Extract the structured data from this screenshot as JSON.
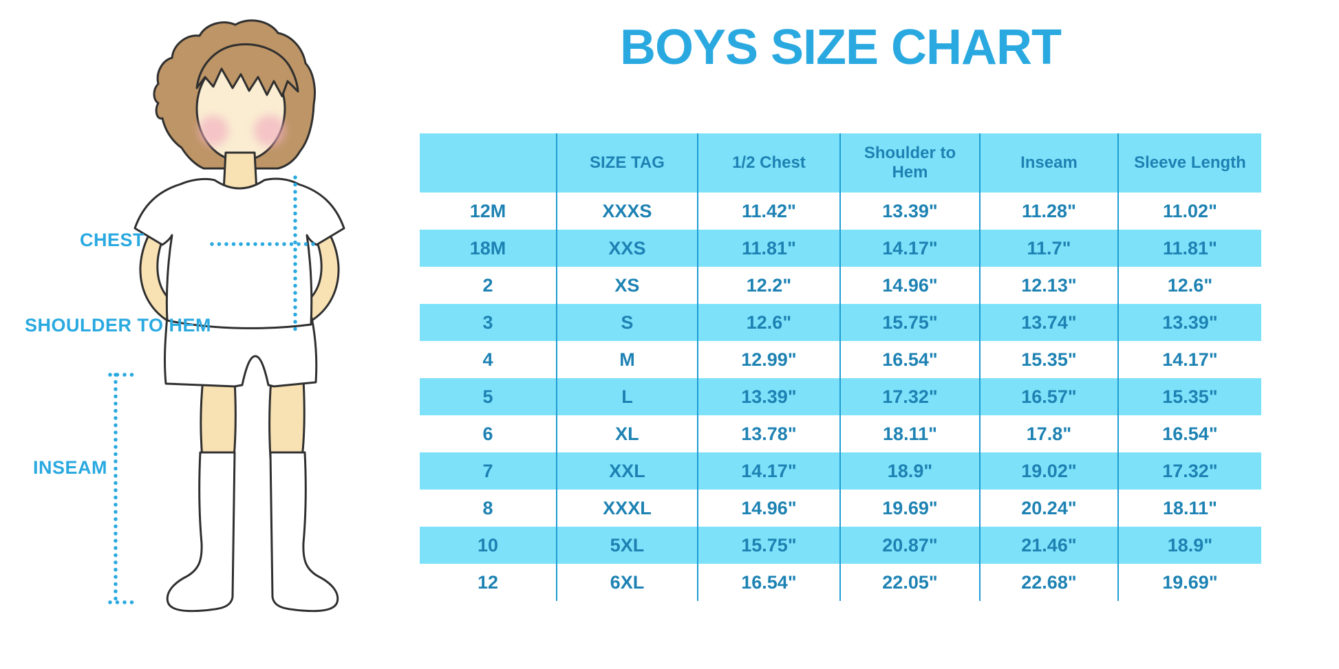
{
  "title_text": "BOYS SIZE CHART",
  "colors": {
    "accent": "#29A9E0",
    "band": "#7DE2F9",
    "line": "#1E9CD3",
    "cell_text": "#1D82B3",
    "skin": "#F8E2B3",
    "skin_light": "#FAEDD2",
    "hair": "#BD9566",
    "blush": "#F2AFC0"
  },
  "diagram": {
    "labels": [
      {
        "id": "chest",
        "text": "CHEST"
      },
      {
        "id": "shoulder-to-hem",
        "text": "SHOULDER TO HEM"
      },
      {
        "id": "inseam",
        "text": "INSEAM"
      }
    ]
  },
  "chart_data": {
    "type": "table",
    "title": "BOYS SIZE CHART",
    "columns": [
      "",
      "SIZE TAG",
      "1/2 Chest",
      "Shoulder to Hem",
      "Inseam",
      "Sleeve Length"
    ],
    "rows": [
      [
        "12M",
        "XXXS",
        "11.42\"",
        "13.39\"",
        "11.28\"",
        "11.02\""
      ],
      [
        "18M",
        "XXS",
        "11.81\"",
        "14.17\"",
        "11.7\"",
        "11.81\""
      ],
      [
        "2",
        "XS",
        "12.2\"",
        "14.96\"",
        "12.13\"",
        "12.6\""
      ],
      [
        "3",
        "S",
        "12.6\"",
        "15.75\"",
        "13.74\"",
        "13.39\""
      ],
      [
        "4",
        "M",
        "12.99\"",
        "16.54\"",
        "15.35\"",
        "14.17\""
      ],
      [
        "5",
        "L",
        "13.39\"",
        "17.32\"",
        "16.57\"",
        "15.35\""
      ],
      [
        "6",
        "XL",
        "13.78\"",
        "18.11\"",
        "17.8\"",
        "16.54\""
      ],
      [
        "7",
        "XXL",
        "14.17\"",
        "18.9\"",
        "19.02\"",
        "17.32\""
      ],
      [
        "8",
        "XXXL",
        "14.96\"",
        "19.69\"",
        "20.24\"",
        "18.11\""
      ],
      [
        "10",
        "5XL",
        "15.75\"",
        "20.87\"",
        "21.46\"",
        "18.9\""
      ],
      [
        "12",
        "6XL",
        "16.54\"",
        "22.05\"",
        "22.68\"",
        "19.69\""
      ]
    ]
  }
}
